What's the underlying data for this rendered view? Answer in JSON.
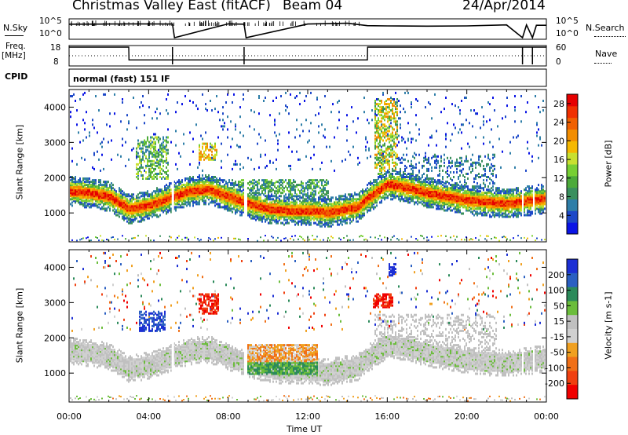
{
  "header": {
    "title": "Christmas Valley East (fitACF)",
    "beam": "Beam 04",
    "date": "24/Apr/2014"
  },
  "status": {
    "nsky_label": "N.Sky",
    "nsearch_label": "N.Search",
    "ticks_left": [
      "10^5",
      "10^0"
    ],
    "ticks_right": [
      "10^5",
      "10^0"
    ],
    "freq_label_1": "Freq.",
    "freq_label_2": "[MHz]",
    "freq_ticks": [
      "18",
      "8"
    ],
    "nave_label": "Nave",
    "nave_ticks": [
      "60",
      "0"
    ],
    "cpid_label": "CPID",
    "cpid_value": "normal (fast) 151 IF"
  },
  "colors": {
    "power_scale": [
      "#0a14e6",
      "#1c48c8",
      "#2e7ea8",
      "#3a8f5e",
      "#4caa3a",
      "#77cf33",
      "#c8e030",
      "#f5b800",
      "#f28d00",
      "#f06000",
      "#f03000",
      "#e60000"
    ],
    "velocity_scale": [
      "#1c2fd4",
      "#2a5fc2",
      "#2b8a5a",
      "#6bbd3b",
      "#c0c0c0",
      "#d0d0d0",
      "#f0a020",
      "#f07018",
      "#f04010",
      "#f00000"
    ]
  },
  "chart_data": [
    {
      "type": "line",
      "panel": "noise",
      "ylabel": "N.Sky",
      "y2label": "N.Search",
      "ylim": [
        1,
        100000
      ],
      "yscale": "log",
      "x": [
        0,
        2,
        3,
        5.2,
        5.3,
        8,
        8.8,
        8.9,
        12,
        14,
        15,
        16,
        18,
        20,
        22,
        22.8,
        23,
        23.3,
        23.5,
        24
      ],
      "sky": [
        8000,
        9000,
        10000,
        9000,
        1,
        10000,
        8000,
        1,
        9000,
        15000,
        3000,
        2500,
        2200,
        2500,
        5000,
        1,
        5000,
        1,
        4000,
        4000
      ]
    },
    {
      "type": "line",
      "panel": "frequency",
      "ylabel": "Freq. [MHz]",
      "y2label": "Nave",
      "ylim": [
        8,
        18
      ],
      "x": [
        0,
        3,
        3.01,
        15,
        15.01,
        24
      ],
      "freq_mhz": [
        18,
        18,
        10.6,
        10.6,
        18,
        18
      ],
      "nave": [
        30,
        30,
        31,
        31,
        30,
        30
      ]
    },
    {
      "type": "heatmap",
      "panel": "power",
      "title": "Power [dB]",
      "xlabel": "Time UT",
      "ylabel": "Slant Range [km]",
      "xticks": [
        "00:00",
        "04:00",
        "08:00",
        "12:00",
        "16:00",
        "20:00",
        "00:00"
      ],
      "xlim": [
        0,
        24
      ],
      "ylim": [
        180,
        4500
      ],
      "yticks": [
        1000,
        2000,
        3000,
        4000
      ],
      "colorbar_ticks": [
        4,
        8,
        12,
        16,
        20,
        24,
        28
      ],
      "colorbar_range": [
        0,
        30
      ],
      "main_band": [
        {
          "t": 0,
          "range": 1650
        },
        {
          "t": 1,
          "range": 1600
        },
        {
          "t": 2,
          "range": 1500
        },
        {
          "t": 3,
          "range": 1150
        },
        {
          "t": 4,
          "range": 1250
        },
        {
          "t": 5,
          "range": 1450
        },
        {
          "t": 6,
          "range": 1650
        },
        {
          "t": 7,
          "range": 1700
        },
        {
          "t": 8,
          "range": 1500
        },
        {
          "t": 9,
          "range": 1300
        },
        {
          "t": 10,
          "range": 1150
        },
        {
          "t": 11,
          "range": 1100
        },
        {
          "t": 12,
          "range": 1100
        },
        {
          "t": 13,
          "range": 1050
        },
        {
          "t": 14.5,
          "range": 1200
        },
        {
          "t": 15,
          "range": 1450
        },
        {
          "t": 16,
          "range": 1850
        },
        {
          "t": 17,
          "range": 1750
        },
        {
          "t": 18,
          "range": 1600
        },
        {
          "t": 20,
          "range": 1400
        },
        {
          "t": 22,
          "range": 1300
        },
        {
          "t": 24,
          "range": 1450
        }
      ]
    },
    {
      "type": "heatmap",
      "panel": "velocity",
      "title": "Velocity [m s-1]",
      "xlabel": "Time UT",
      "ylabel": "Slant Range [km]",
      "xticks": [
        "00:00",
        "04:00",
        "08:00",
        "12:00",
        "16:00",
        "20:00",
        "00:00"
      ],
      "xlim": [
        0,
        24
      ],
      "ylim": [
        180,
        4500
      ],
      "yticks": [
        1000,
        2000,
        3000,
        4000
      ],
      "colorbar_ticks": [
        200,
        100,
        50,
        15,
        -15,
        -50,
        -100,
        -200
      ],
      "features": [
        {
          "t_start": 3.5,
          "t_end": 4.8,
          "range": 2500,
          "velocity": 150
        },
        {
          "t_start": 6.5,
          "t_end": 7.5,
          "range": 3000,
          "velocity": -150
        },
        {
          "t_start": 8.8,
          "t_end": 12.5,
          "range": 1600,
          "velocity": -60
        },
        {
          "t_start": 9.0,
          "t_end": 12.0,
          "range": 1150,
          "velocity": 40
        },
        {
          "t_start": 15.2,
          "t_end": 16.3,
          "range": 3100,
          "velocity": -200
        },
        {
          "t_start": 16.0,
          "t_end": 16.4,
          "range": 4000,
          "velocity": 200
        }
      ]
    }
  ]
}
